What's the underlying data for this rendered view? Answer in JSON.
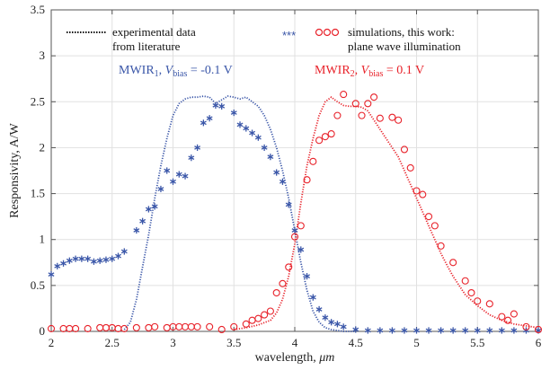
{
  "chart_data": {
    "type": "line",
    "xlabel_prefix": "wavelength, ",
    "xlabel_unit": "μm",
    "ylabel": "Responsivity, A/W",
    "xlim": [
      2,
      6
    ],
    "ylim": [
      0,
      3.5
    ],
    "xticks": [
      2,
      2.5,
      3,
      3.5,
      4,
      4.5,
      5,
      5.5,
      6
    ],
    "xtick_labels": [
      "2",
      "2.5",
      "3",
      "3.5",
      "4",
      "4.5",
      "5",
      "5.5",
      "6"
    ],
    "yticks": [
      0,
      0.5,
      1,
      1.5,
      2,
      2.5,
      3,
      3.5
    ],
    "ytick_labels": [
      "0",
      "0.5",
      "1",
      "1.5",
      "2",
      "2.5",
      "3",
      "3.5"
    ],
    "grid": true,
    "legend": {
      "placement": "top",
      "left_line1": "experimental data",
      "left_line2": "from literature",
      "right_line1": "simulations, this work:",
      "right_line2": "plane wave illumination"
    },
    "annotations": {
      "mwir1": {
        "base": "MWIR",
        "sub": "1",
        "mid": ", ",
        "var": "V",
        "varsub": "bias",
        "value": " = -0.1 V",
        "color": "#3a56a8"
      },
      "mwir2": {
        "base": "MWIR",
        "sub": "2",
        "mid": ", ",
        "var": "V",
        "varsub": "bias",
        "value": " = 0.1 V",
        "color": "#e8222a"
      }
    },
    "colors": {
      "blue": "#3a56a8",
      "red": "#e8222a",
      "black": "#111111"
    },
    "series": [
      {
        "kind": "experimental",
        "color": "#3a56a8",
        "x": [
          2.6,
          2.65,
          2.7,
          2.75,
          2.8,
          2.85,
          2.9,
          2.95,
          3.0,
          3.05,
          3.1,
          3.15,
          3.2,
          3.25,
          3.3,
          3.35,
          3.4,
          3.45,
          3.5,
          3.55,
          3.6,
          3.65,
          3.7,
          3.75,
          3.8,
          3.85,
          3.9,
          3.95,
          4.0,
          4.05,
          4.1,
          4.15,
          4.2,
          4.25,
          4.3,
          4.35,
          4.4,
          4.5
        ],
        "y": [
          0.02,
          0.1,
          0.35,
          0.7,
          1.05,
          1.45,
          1.8,
          2.1,
          2.35,
          2.48,
          2.53,
          2.55,
          2.55,
          2.56,
          2.55,
          2.48,
          2.52,
          2.56,
          2.55,
          2.53,
          2.55,
          2.5,
          2.45,
          2.35,
          2.2,
          2.0,
          1.75,
          1.45,
          1.1,
          0.75,
          0.45,
          0.22,
          0.1,
          0.04,
          0.02,
          0.01,
          0.0,
          0.0
        ]
      },
      {
        "kind": "experimental",
        "color": "#e8222a",
        "x": [
          3.5,
          3.6,
          3.7,
          3.8,
          3.85,
          3.9,
          3.95,
          4.0,
          4.05,
          4.1,
          4.15,
          4.2,
          4.25,
          4.3,
          4.35,
          4.4,
          4.45,
          4.5,
          4.55,
          4.6,
          4.65,
          4.7,
          4.75,
          4.8,
          4.85,
          4.9,
          4.95,
          5.0,
          5.05,
          5.1,
          5.15,
          5.2,
          5.25,
          5.3,
          5.35,
          5.4,
          5.5,
          5.6,
          5.7,
          5.8,
          5.9,
          6.0
        ],
        "y": [
          0.02,
          0.04,
          0.07,
          0.12,
          0.2,
          0.35,
          0.6,
          0.95,
          1.4,
          1.8,
          2.1,
          2.35,
          2.5,
          2.55,
          2.5,
          2.46,
          2.45,
          2.45,
          2.44,
          2.4,
          2.3,
          2.2,
          2.1,
          2.0,
          1.9,
          1.75,
          1.6,
          1.45,
          1.3,
          1.15,
          1.0,
          0.85,
          0.72,
          0.6,
          0.5,
          0.4,
          0.28,
          0.18,
          0.12,
          0.08,
          0.06,
          0.04
        ]
      },
      {
        "kind": "simulation",
        "marker": "*",
        "color": "#3a56a8",
        "x": [
          2.0,
          2.05,
          2.1,
          2.15,
          2.2,
          2.25,
          2.3,
          2.35,
          2.4,
          2.45,
          2.5,
          2.55,
          2.6,
          2.7,
          2.75,
          2.8,
          2.85,
          2.9,
          2.95,
          3.0,
          3.05,
          3.1,
          3.15,
          3.2,
          3.25,
          3.3,
          3.35,
          3.4,
          3.5,
          3.55,
          3.6,
          3.65,
          3.7,
          3.75,
          3.8,
          3.85,
          3.9,
          3.95,
          4.0,
          4.05,
          4.1,
          4.15,
          4.2,
          4.25,
          4.3,
          4.35,
          4.4,
          4.5,
          4.6,
          4.7,
          4.8,
          4.9,
          5.0,
          5.1,
          5.2,
          5.3,
          5.4,
          5.5,
          5.6,
          5.7,
          5.8,
          5.9,
          6.0
        ],
        "y": [
          0.62,
          0.71,
          0.74,
          0.77,
          0.79,
          0.79,
          0.79,
          0.76,
          0.77,
          0.78,
          0.79,
          0.82,
          0.87,
          1.1,
          1.2,
          1.33,
          1.36,
          1.55,
          1.75,
          1.63,
          1.71,
          1.69,
          1.89,
          2.0,
          2.27,
          2.32,
          2.46,
          2.45,
          2.38,
          2.25,
          2.21,
          2.16,
          2.11,
          2.0,
          1.9,
          1.73,
          1.63,
          1.38,
          1.1,
          0.89,
          0.6,
          0.37,
          0.24,
          0.15,
          0.1,
          0.08,
          0.05,
          0.02,
          0.01,
          0.01,
          0.01,
          0.01,
          0.01,
          0.01,
          0.01,
          0.01,
          0.01,
          0.01,
          0.01,
          0.01,
          0.01,
          0.01,
          0.01
        ]
      },
      {
        "kind": "simulation",
        "marker": "o",
        "color": "#e8222a",
        "x": [
          2.0,
          2.1,
          2.15,
          2.2,
          2.3,
          2.4,
          2.45,
          2.5,
          2.55,
          2.6,
          2.7,
          2.8,
          2.85,
          2.95,
          3.0,
          3.05,
          3.1,
          3.15,
          3.2,
          3.3,
          3.4,
          3.5,
          3.6,
          3.65,
          3.7,
          3.75,
          3.8,
          3.85,
          3.9,
          3.95,
          4.0,
          4.05,
          4.1,
          4.15,
          4.2,
          4.25,
          4.3,
          4.35,
          4.4,
          4.5,
          4.55,
          4.6,
          4.65,
          4.7,
          4.8,
          4.85,
          4.9,
          4.95,
          5.0,
          5.05,
          5.1,
          5.15,
          5.2,
          5.3,
          5.4,
          5.45,
          5.5,
          5.6,
          5.7,
          5.75,
          5.8,
          5.9,
          6.0
        ],
        "y": [
          0.03,
          0.03,
          0.03,
          0.03,
          0.03,
          0.04,
          0.04,
          0.04,
          0.03,
          0.03,
          0.04,
          0.04,
          0.05,
          0.04,
          0.05,
          0.05,
          0.05,
          0.05,
          0.05,
          0.05,
          0.02,
          0.05,
          0.08,
          0.12,
          0.14,
          0.18,
          0.22,
          0.42,
          0.52,
          0.7,
          1.03,
          1.15,
          1.65,
          1.85,
          2.08,
          2.12,
          2.15,
          2.35,
          2.58,
          2.48,
          2.35,
          2.48,
          2.55,
          2.32,
          2.33,
          2.3,
          1.98,
          1.78,
          1.53,
          1.49,
          1.25,
          1.15,
          0.93,
          0.75,
          0.55,
          0.42,
          0.33,
          0.3,
          0.16,
          0.12,
          0.19,
          0.05,
          0.02
        ]
      }
    ]
  }
}
